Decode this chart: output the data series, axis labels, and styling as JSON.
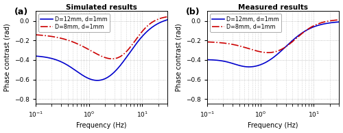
{
  "title_a": "Simulated results",
  "title_b": "Measured results",
  "label_a": "(a)",
  "label_b": "(b)",
  "xlabel": "Frequency (Hz)",
  "ylabel": "Phase contrast (rad)",
  "legend_1": "D=12mm, d=1mm",
  "legend_2": "D=8mm, d=1mm",
  "xlim": [
    0.1,
    30
  ],
  "ylim_a": [
    -0.85,
    0.1
  ],
  "ylim_b": [
    -0.85,
    0.1
  ],
  "yticks": [
    -0.8,
    -0.6,
    -0.4,
    -0.2,
    0
  ],
  "color_blue": "#0000cc",
  "color_red": "#cc0000",
  "grid_color": "#b0b0b0",
  "bg_color": "#ffffff",
  "sim_blue_low": -0.35,
  "sim_blue_min_f": 0.65,
  "sim_blue_depth": -0.755,
  "sim_blue_rec_f": 5.5,
  "sim_blue_high": 0.055,
  "sim_red_low": -0.13,
  "sim_red_min_f": 1.5,
  "sim_red_depth": -0.595,
  "sim_red_rec_f": 7.0,
  "sim_red_high": 0.055,
  "meas_blue_low": -0.395,
  "meas_blue_min_f": 0.35,
  "meas_blue_depth": -0.525,
  "meas_blue_rec_f": 3.0,
  "meas_blue_high": 0.0,
  "meas_red_low": -0.21,
  "meas_red_min_f": 0.75,
  "meas_red_depth": -0.41,
  "meas_red_rec_f": 4.5,
  "meas_red_high": 0.02
}
